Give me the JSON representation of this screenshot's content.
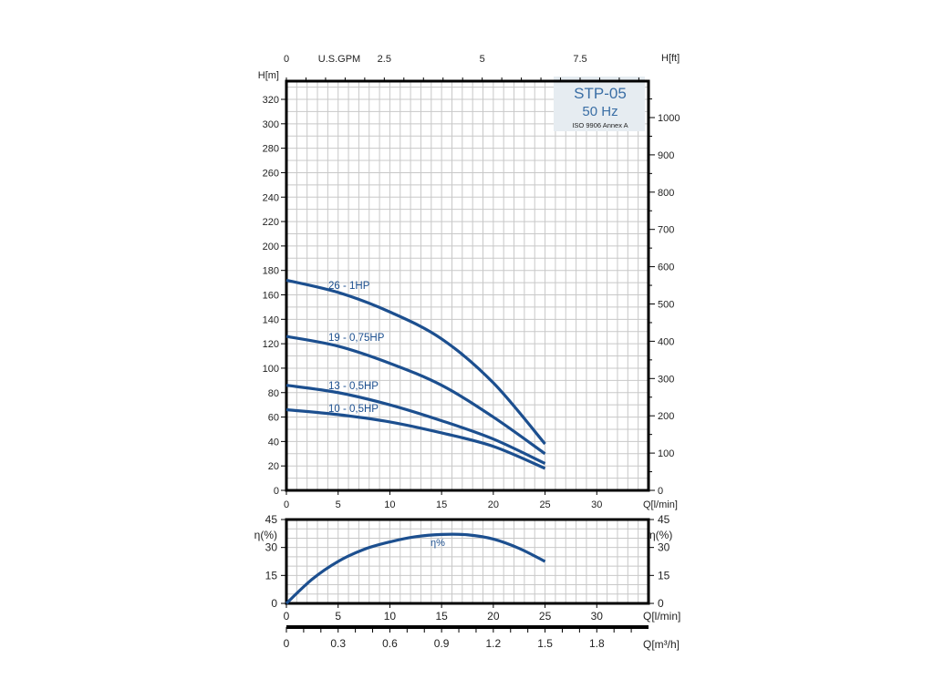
{
  "chart_data": [
    {
      "type": "line",
      "title": "STP-05",
      "subtitle": "50 Hz",
      "annotation": "ISO 9906 Annex A",
      "xlabel": "Q[l/min]",
      "ylabel": "H[m]",
      "ylabel_right": "H[ft]",
      "xlabel_top": "U.S.GPM",
      "xlim": [
        0,
        35
      ],
      "ylim": [
        0,
        335
      ],
      "ylim_right_ft": [
        0,
        1100
      ],
      "x_ticks": [
        0,
        5,
        10,
        15,
        20,
        25,
        30
      ],
      "y_ticks": [
        0,
        20,
        40,
        60,
        80,
        100,
        120,
        140,
        160,
        180,
        200,
        220,
        240,
        260,
        280,
        300,
        320
      ],
      "y_ticks_right": [
        0,
        100,
        200,
        300,
        400,
        500,
        600,
        700,
        800,
        900,
        1000
      ],
      "x_ticks_top": [
        "0",
        "2.5",
        "5",
        "7.5"
      ],
      "grid": true,
      "color": "#1c4f8f",
      "series": [
        {
          "name": "26 - 1HP",
          "x": [
            0,
            5,
            10,
            15,
            20,
            25
          ],
          "values": [
            172,
            162,
            146,
            124,
            88,
            38
          ]
        },
        {
          "name": "19 - 0,75HP",
          "x": [
            0,
            5,
            10,
            15,
            20,
            25
          ],
          "values": [
            126,
            118,
            104,
            86,
            60,
            30
          ]
        },
        {
          "name": "13 - 0,5HP",
          "x": [
            0,
            5,
            10,
            15,
            20,
            25
          ],
          "values": [
            86,
            80,
            70,
            57,
            42,
            22
          ]
        },
        {
          "name": "10 - 0,5HP",
          "x": [
            0,
            5,
            10,
            15,
            20,
            25
          ],
          "values": [
            66,
            62,
            56,
            47,
            36,
            18
          ]
        }
      ]
    },
    {
      "type": "line",
      "xlabel": "Q[l/min]",
      "ylabel": "η(%)",
      "ylabel_right": "η(%)",
      "xlim": [
        0,
        35
      ],
      "ylim": [
        0,
        45
      ],
      "x_ticks": [
        0,
        5,
        10,
        15,
        20,
        25,
        30
      ],
      "y_ticks": [
        0,
        15,
        30,
        45
      ],
      "grid": true,
      "series": [
        {
          "name": "η%",
          "x": [
            0,
            2.5,
            5,
            7.5,
            10,
            12.5,
            15,
            17.5,
            20,
            22.5,
            25
          ],
          "values": [
            0,
            13,
            22.5,
            29,
            33,
            35.8,
            37,
            36.8,
            34.5,
            29.5,
            22.5
          ]
        }
      ],
      "secondary_x_axis": {
        "label": "Q[m³/h]",
        "ticks": [
          "0",
          "0.3",
          "0.6",
          "0.9",
          "1.2",
          "1.5",
          "1.8"
        ]
      }
    }
  ]
}
